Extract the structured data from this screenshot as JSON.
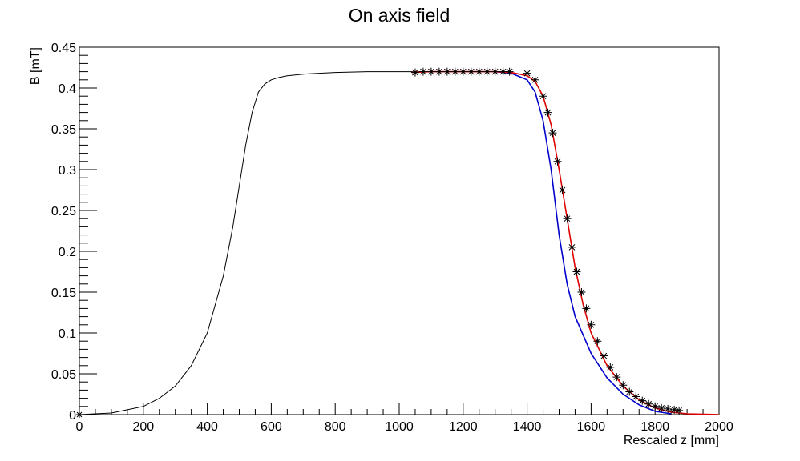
{
  "chart_data": {
    "type": "line",
    "title": "On axis field",
    "xlabel": "Rescaled z [mm]",
    "ylabel": "B [mT]",
    "xlim": [
      0,
      2000
    ],
    "ylim": [
      0,
      0.45
    ],
    "x_ticks": [
      "0",
      "200",
      "400",
      "600",
      "800",
      "1000",
      "1200",
      "1400",
      "1600",
      "1800",
      "2000"
    ],
    "y_ticks": [
      "0",
      "0.05",
      "0.1",
      "0.15",
      "0.2",
      "0.25",
      "0.3",
      "0.35",
      "0.4",
      "0.45"
    ],
    "grid": false,
    "legend": "none",
    "series": [
      {
        "color": "#000000",
        "style": "line",
        "x": [
          0,
          100,
          200,
          250,
          300,
          350,
          400,
          450,
          480,
          500,
          520,
          540,
          560,
          580,
          600,
          625,
          650,
          700,
          800,
          900,
          1000,
          1100,
          1200,
          1300,
          1340
        ],
        "y": [
          0.0,
          0.002,
          0.01,
          0.02,
          0.035,
          0.06,
          0.1,
          0.17,
          0.23,
          0.28,
          0.33,
          0.37,
          0.395,
          0.405,
          0.41,
          0.413,
          0.415,
          0.417,
          0.419,
          0.42,
          0.42,
          0.42,
          0.42,
          0.42,
          0.42
        ]
      },
      {
        "color": "#0000cc",
        "style": "line",
        "x": [
          1300,
          1350,
          1400,
          1425,
          1450,
          1475,
          1500,
          1525,
          1550,
          1600,
          1650,
          1700,
          1750,
          1800,
          1850
        ],
        "y": [
          0.42,
          0.418,
          0.41,
          0.395,
          0.36,
          0.3,
          0.22,
          0.16,
          0.12,
          0.075,
          0.045,
          0.025,
          0.012,
          0.004,
          0.001
        ]
      },
      {
        "color": "#dd0000",
        "style": "line",
        "x": [
          1040,
          1100,
          1200,
          1300,
          1350,
          1400,
          1425,
          1450,
          1475,
          1500,
          1525,
          1550,
          1575,
          1600,
          1650,
          1700,
          1750,
          1800,
          1850,
          1900,
          2000
        ],
        "y": [
          0.419,
          0.42,
          0.42,
          0.42,
          0.419,
          0.415,
          0.408,
          0.39,
          0.355,
          0.3,
          0.24,
          0.18,
          0.135,
          0.1,
          0.06,
          0.035,
          0.018,
          0.008,
          0.003,
          0.001,
          0.0
        ]
      },
      {
        "color": "#000000",
        "style": "markers",
        "marker": "star",
        "x": [
          1050,
          1075,
          1100,
          1125,
          1150,
          1175,
          1200,
          1225,
          1250,
          1275,
          1300,
          1325,
          1345,
          1400,
          1425,
          1450,
          1465,
          1480,
          1495,
          1510,
          1525,
          1540,
          1555,
          1570,
          1585,
          1600,
          1620,
          1640,
          1660,
          1680,
          1700,
          1720,
          1740,
          1760,
          1780,
          1800,
          1820,
          1840,
          1860,
          1875
        ],
        "y": [
          0.419,
          0.42,
          0.42,
          0.42,
          0.42,
          0.42,
          0.42,
          0.42,
          0.42,
          0.42,
          0.42,
          0.42,
          0.42,
          0.418,
          0.41,
          0.39,
          0.37,
          0.345,
          0.31,
          0.275,
          0.24,
          0.205,
          0.175,
          0.15,
          0.13,
          0.11,
          0.09,
          0.072,
          0.058,
          0.046,
          0.036,
          0.028,
          0.022,
          0.017,
          0.013,
          0.01,
          0.008,
          0.007,
          0.006,
          0.005
        ]
      }
    ]
  }
}
